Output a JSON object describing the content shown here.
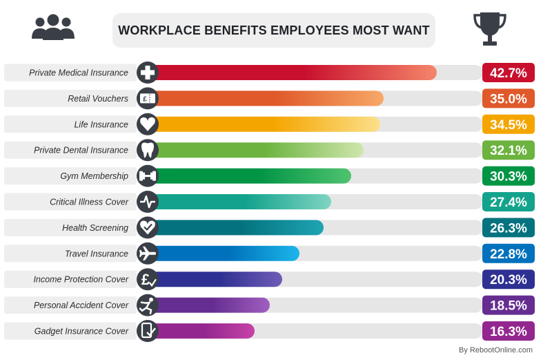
{
  "chart_data": {
    "type": "bar",
    "title": "WORKPLACE BENEFITS EMPLOYEES MOST WANT",
    "orientation": "horizontal",
    "unit": "%",
    "categories": [
      "Private Medical Insurance",
      "Retail Vouchers",
      "Life Insurance",
      "Private Dental Insurance",
      "Gym Membership",
      "Critical Illness Cover",
      "Health Screening",
      "Travel Insurance",
      "Income Protection Cover",
      "Personal Accident Cover",
      "Gadget Insurance Cover"
    ],
    "values": [
      42.7,
      35.0,
      34.5,
      32.1,
      30.3,
      27.4,
      26.3,
      22.8,
      20.3,
      18.5,
      16.3
    ],
    "value_labels": [
      "42.7%",
      "35.0%",
      "34.5%",
      "32.1%",
      "30.3%",
      "27.4%",
      "26.3%",
      "22.8%",
      "20.3%",
      "18.5%",
      "16.3%"
    ],
    "icons": [
      "medical-cross-icon",
      "voucher-icon",
      "heart-icon",
      "tooth-icon",
      "dumbbell-icon",
      "heartbeat-icon",
      "heart-check-icon",
      "airplane-icon",
      "pound-check-icon",
      "falling-person-icon",
      "phone-check-icon"
    ],
    "colors": [
      [
        "#c8102e",
        "#f4866a"
      ],
      [
        "#e0592a",
        "#f7a867"
      ],
      [
        "#f5a500",
        "#fbe08a"
      ],
      [
        "#6cb33f",
        "#cfe6ad"
      ],
      [
        "#009444",
        "#4fc36f"
      ],
      [
        "#13a38d",
        "#7fd4c2"
      ],
      [
        "#04737f",
        "#1fa4b3"
      ],
      [
        "#0071bc",
        "#1bb6ea"
      ],
      [
        "#2e3192",
        "#6f5bb7"
      ],
      [
        "#662d91",
        "#a05fc0"
      ],
      [
        "#93278f",
        "#c643a8"
      ]
    ],
    "track_color": "#e6e6e6",
    "label_bg_color": "#eeeeee",
    "icon_circle_color": "#3a3f47",
    "ylim": [
      0,
      50
    ]
  },
  "credit": "By RebootOnline.com",
  "header_icons": {
    "left": "people-icon",
    "right": "trophy-icon"
  }
}
